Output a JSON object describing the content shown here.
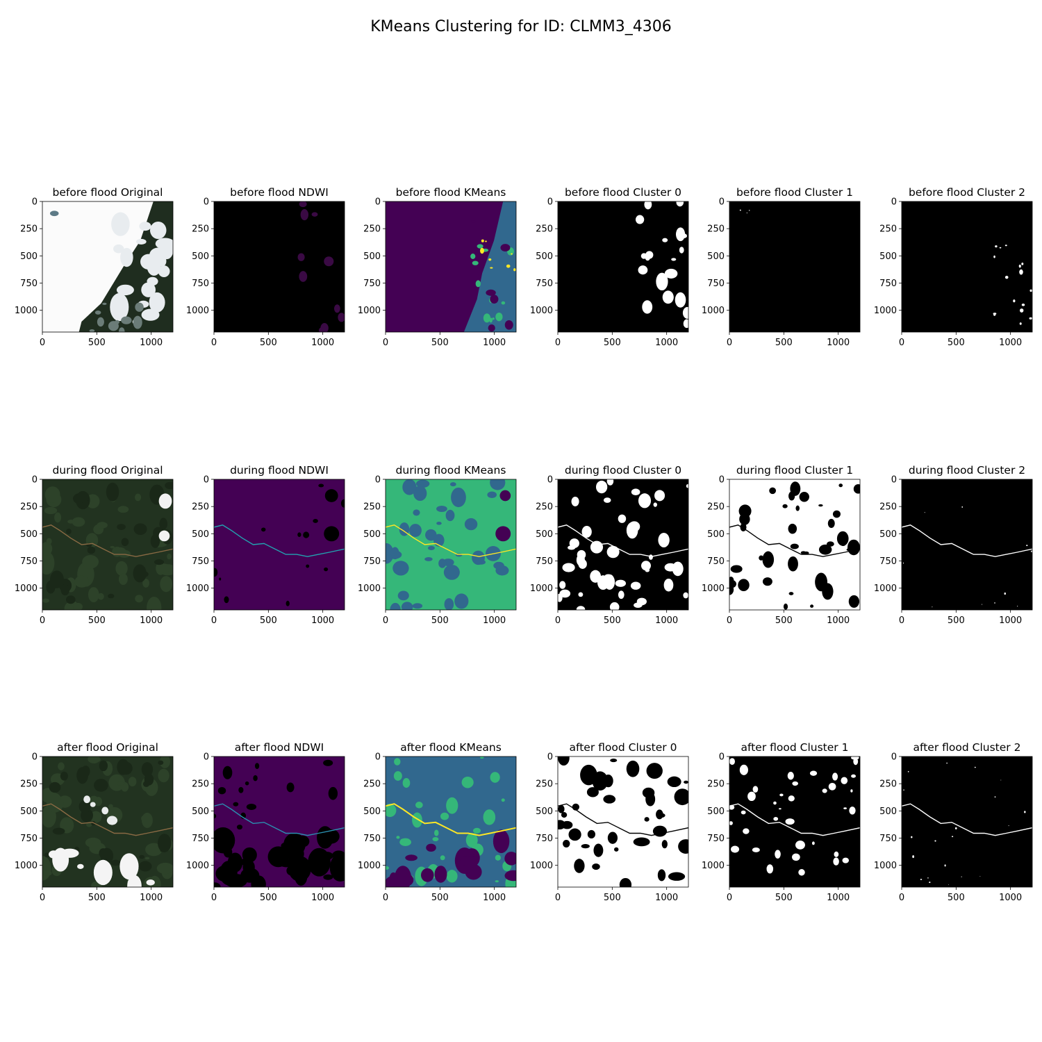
{
  "figure": {
    "title": "KMeans Clustering for ID: CLMM3_4306"
  },
  "chart_data": {
    "type": "image_grid",
    "rows": [
      "before flood",
      "during flood",
      "after flood"
    ],
    "columns": [
      "Original",
      "NDWI",
      "KMeans",
      "Cluster 0",
      "Cluster 1",
      "Cluster 2"
    ],
    "panels": [
      {
        "title": "before flood Original",
        "kind": "rgb",
        "scene": "before"
      },
      {
        "title": "before flood NDWI",
        "kind": "ndwi",
        "scene": "before"
      },
      {
        "title": "before flood KMeans",
        "kind": "kmeans",
        "scene": "before"
      },
      {
        "title": "before flood Cluster 0",
        "kind": "cluster0",
        "scene": "before"
      },
      {
        "title": "before flood Cluster 1",
        "kind": "cluster1",
        "scene": "before"
      },
      {
        "title": "before flood Cluster 2",
        "kind": "cluster2",
        "scene": "before"
      },
      {
        "title": "during flood Original",
        "kind": "rgb",
        "scene": "during"
      },
      {
        "title": "during flood NDWI",
        "kind": "ndwi",
        "scene": "during"
      },
      {
        "title": "during flood KMeans",
        "kind": "kmeans",
        "scene": "during"
      },
      {
        "title": "during flood Cluster 0",
        "kind": "cluster0",
        "scene": "during"
      },
      {
        "title": "during flood Cluster 1",
        "kind": "cluster1",
        "scene": "during"
      },
      {
        "title": "during flood Cluster 2",
        "kind": "cluster2",
        "scene": "during"
      },
      {
        "title": "after flood Original",
        "kind": "rgb",
        "scene": "after"
      },
      {
        "title": "after flood NDWI",
        "kind": "ndwi",
        "scene": "after"
      },
      {
        "title": "after flood KMeans",
        "kind": "kmeans",
        "scene": "after"
      },
      {
        "title": "after flood Cluster 0",
        "kind": "cluster0",
        "scene": "after"
      },
      {
        "title": "after flood Cluster 1",
        "kind": "cluster1",
        "scene": "after"
      },
      {
        "title": "after flood Cluster 2",
        "kind": "cluster2",
        "scene": "after"
      }
    ],
    "x_ticks": [
      0,
      500,
      1000
    ],
    "y_ticks": [
      0,
      250,
      500,
      750,
      1000
    ],
    "x_tick_labels": [
      "0",
      "500",
      "1000"
    ],
    "y_tick_labels": [
      "0",
      "250",
      "500",
      "750",
      "1000"
    ],
    "image_size": [
      1200,
      1200
    ],
    "colormap": "viridis",
    "colors": {
      "viridis_dark": "#440154",
      "viridis_blue": "#31688e",
      "viridis_green": "#35b779",
      "viridis_yellow": "#fde725",
      "forest": "#1f2d1f",
      "cloud": "#ffffff",
      "black": "#000000",
      "white": "#ffffff"
    }
  }
}
